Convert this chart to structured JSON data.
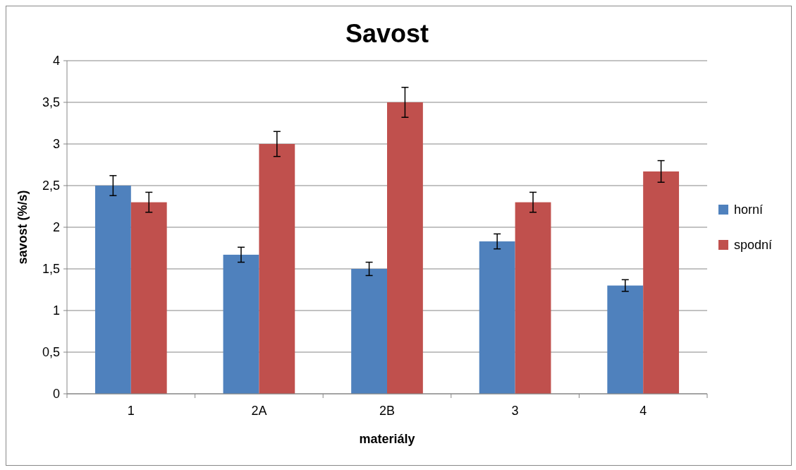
{
  "chart_data": {
    "type": "bar",
    "title": "Savost",
    "xlabel": "materiály",
    "ylabel": "savost (%/s)",
    "categories": [
      "1",
      "2A",
      "2B",
      "3",
      "4"
    ],
    "series": [
      {
        "name": "horní",
        "color": "#4f81bd",
        "values": [
          2.5,
          1.67,
          1.5,
          1.83,
          1.3
        ],
        "errors": [
          0.12,
          0.09,
          0.08,
          0.09,
          0.07
        ]
      },
      {
        "name": "spodní",
        "color": "#c0504d",
        "values": [
          2.3,
          3.0,
          3.5,
          2.3,
          2.67
        ],
        "errors": [
          0.12,
          0.15,
          0.18,
          0.12,
          0.13
        ]
      }
    ],
    "ylim": [
      0,
      4
    ],
    "yticks": [
      0,
      {
        "value": 0.5,
        "label": "0,5"
      },
      1,
      {
        "value": 1.5,
        "label": "1,5"
      },
      2,
      {
        "value": 2.5,
        "label": "2,5"
      },
      3,
      {
        "value": 3.5,
        "label": "3,5"
      },
      4
    ],
    "grid": "y",
    "legend": "right"
  }
}
